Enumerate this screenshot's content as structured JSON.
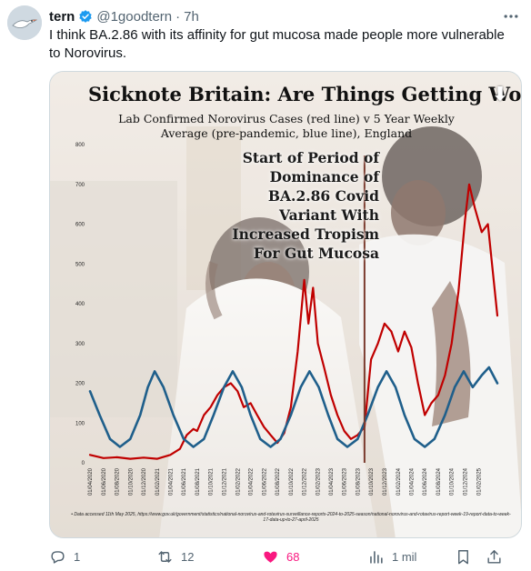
{
  "post": {
    "display_name": "tern",
    "handle": "@1goodtern",
    "separator": "·",
    "time": "7h",
    "text": "I think BA.2.86 with its affinity for gut mucosa made people more vulnerable to Norovirus."
  },
  "chart": {
    "title": "Sicknote Britain: Are Things Getting Worse?",
    "title_arrow": "⬇",
    "subtitle": "Lab Confirmed Norovirus Cases (red line) v 5 Year Weekly Average (pre-pandemic, blue line), England",
    "annotation": "Start of Period of Dominance of BA.2.86 Covid Variant With Increased Tropism For Gut Mucosa",
    "footnote": "• Data accessed 11th May 2025, https://www.gov.uk/government/statistics/national-norovirus-and-rotavirus-surveillance-reports-2024-to-2025-season/national-norovirus-and-rotavirus-report-week-19-report-data-to-week-17-data-up-to-27-april-2025"
  },
  "actions": {
    "replies": "1",
    "reposts": "12",
    "likes": "68",
    "views": "1 mil"
  },
  "colors": {
    "red_line": "#c00000",
    "blue_line": "#1f5f8b",
    "like": "#f91880",
    "verified": "#1d9bf0"
  },
  "icons": {
    "verified": "verified-badge-icon",
    "more": "more-options-icon",
    "reply": "reply-icon",
    "repost": "repost-icon",
    "like": "heart-icon",
    "views": "views-chart-icon",
    "bookmark": "bookmark-icon",
    "share": "share-icon"
  },
  "chart_data": {
    "type": "line",
    "title": "Sicknote Britain: Are Things Getting Worse?",
    "subtitle": "Lab Confirmed Norovirus Cases (red line) v 5 Year Weekly Average (pre-pandemic, blue line), England",
    "ylim": [
      0,
      800
    ],
    "yticks": [
      0,
      100,
      200,
      300,
      400,
      500,
      600,
      700,
      800
    ],
    "xticks": [
      "01/04/2020",
      "01/06/2020",
      "01/08/2020",
      "01/10/2020",
      "01/12/2020",
      "01/02/2021",
      "01/04/2021",
      "01/06/2021",
      "01/08/2021",
      "01/10/2021",
      "01/12/2021",
      "01/02/2022",
      "01/04/2022",
      "01/06/2022",
      "01/08/2022",
      "01/10/2022",
      "01/12/2022",
      "01/02/2023",
      "01/04/2023",
      "01/06/2023",
      "01/08/2023",
      "01/10/2023",
      "01/12/2023",
      "01/02/2024",
      "01/04/2024",
      "01/06/2024",
      "01/08/2024",
      "01/10/2024",
      "01/12/2024",
      "01/02/2025"
    ],
    "x_start": "2020-04-01",
    "x_end": "2025-04-27",
    "marker_date": "2023-09-01",
    "series": [
      {
        "name": "Lab Confirmed Norovirus Cases",
        "color": "#c00000",
        "points": [
          [
            "2020-04-01",
            20
          ],
          [
            "2020-06-01",
            12
          ],
          [
            "2020-08-01",
            14
          ],
          [
            "2020-10-01",
            10
          ],
          [
            "2020-12-01",
            13
          ],
          [
            "2021-02-01",
            10
          ],
          [
            "2021-04-01",
            20
          ],
          [
            "2021-05-15",
            35
          ],
          [
            "2021-06-15",
            70
          ],
          [
            "2021-07-15",
            85
          ],
          [
            "2021-08-01",
            80
          ],
          [
            "2021-09-01",
            120
          ],
          [
            "2021-10-01",
            140
          ],
          [
            "2021-11-01",
            170
          ],
          [
            "2021-12-01",
            190
          ],
          [
            "2022-01-01",
            200
          ],
          [
            "2022-02-01",
            180
          ],
          [
            "2022-03-01",
            140
          ],
          [
            "2022-04-01",
            150
          ],
          [
            "2022-05-01",
            120
          ],
          [
            "2022-06-01",
            90
          ],
          [
            "2022-07-01",
            70
          ],
          [
            "2022-08-01",
            50
          ],
          [
            "2022-09-01",
            75
          ],
          [
            "2022-10-01",
            140
          ],
          [
            "2022-11-01",
            280
          ],
          [
            "2022-12-01",
            460
          ],
          [
            "2022-12-20",
            350
          ],
          [
            "2023-01-10",
            440
          ],
          [
            "2023-02-01",
            300
          ],
          [
            "2023-03-01",
            240
          ],
          [
            "2023-04-01",
            170
          ],
          [
            "2023-05-01",
            120
          ],
          [
            "2023-06-01",
            80
          ],
          [
            "2023-07-01",
            60
          ],
          [
            "2023-08-01",
            70
          ],
          [
            "2023-09-01",
            90
          ],
          [
            "2023-10-01",
            260
          ],
          [
            "2023-11-01",
            300
          ],
          [
            "2023-12-01",
            350
          ],
          [
            "2024-01-01",
            330
          ],
          [
            "2024-02-01",
            280
          ],
          [
            "2024-03-01",
            330
          ],
          [
            "2024-04-01",
            290
          ],
          [
            "2024-05-01",
            200
          ],
          [
            "2024-06-01",
            120
          ],
          [
            "2024-07-01",
            150
          ],
          [
            "2024-08-01",
            170
          ],
          [
            "2024-09-01",
            220
          ],
          [
            "2024-10-01",
            300
          ],
          [
            "2024-11-01",
            430
          ],
          [
            "2024-12-01",
            610
          ],
          [
            "2024-12-20",
            700
          ],
          [
            "2025-01-15",
            640
          ],
          [
            "2025-02-15",
            580
          ],
          [
            "2025-03-15",
            600
          ],
          [
            "2025-04-27",
            370
          ]
        ]
      },
      {
        "name": "5 Year Weekly Average (pre-pandemic)",
        "color": "#1f5f8b",
        "points": [
          [
            "2020-04-01",
            180
          ],
          [
            "2020-05-15",
            120
          ],
          [
            "2020-07-01",
            60
          ],
          [
            "2020-08-15",
            40
          ],
          [
            "2020-10-01",
            60
          ],
          [
            "2020-11-15",
            120
          ],
          [
            "2020-12-20",
            190
          ],
          [
            "2021-01-20",
            230
          ],
          [
            "2021-03-01",
            190
          ],
          [
            "2021-04-15",
            120
          ],
          [
            "2021-06-01",
            60
          ],
          [
            "2021-07-15",
            40
          ],
          [
            "2021-09-01",
            60
          ],
          [
            "2021-10-15",
            120
          ],
          [
            "2021-12-01",
            190
          ],
          [
            "2022-01-10",
            230
          ],
          [
            "2022-02-20",
            190
          ],
          [
            "2022-04-01",
            120
          ],
          [
            "2022-05-15",
            60
          ],
          [
            "2022-07-01",
            40
          ],
          [
            "2022-08-15",
            60
          ],
          [
            "2022-10-01",
            120
          ],
          [
            "2022-11-15",
            190
          ],
          [
            "2022-12-25",
            230
          ],
          [
            "2023-02-05",
            190
          ],
          [
            "2023-03-20",
            120
          ],
          [
            "2023-05-01",
            60
          ],
          [
            "2023-06-15",
            40
          ],
          [
            "2023-08-01",
            60
          ],
          [
            "2023-09-15",
            120
          ],
          [
            "2023-11-01",
            190
          ],
          [
            "2023-12-10",
            230
          ],
          [
            "2024-01-20",
            190
          ],
          [
            "2024-03-01",
            120
          ],
          [
            "2024-04-15",
            60
          ],
          [
            "2024-06-01",
            40
          ],
          [
            "2024-07-15",
            60
          ],
          [
            "2024-09-01",
            120
          ],
          [
            "2024-10-15",
            190
          ],
          [
            "2024-11-25",
            230
          ],
          [
            "2025-01-05",
            190
          ],
          [
            "2025-02-15",
            220
          ],
          [
            "2025-03-20",
            240
          ],
          [
            "2025-04-27",
            200
          ]
        ]
      }
    ]
  }
}
